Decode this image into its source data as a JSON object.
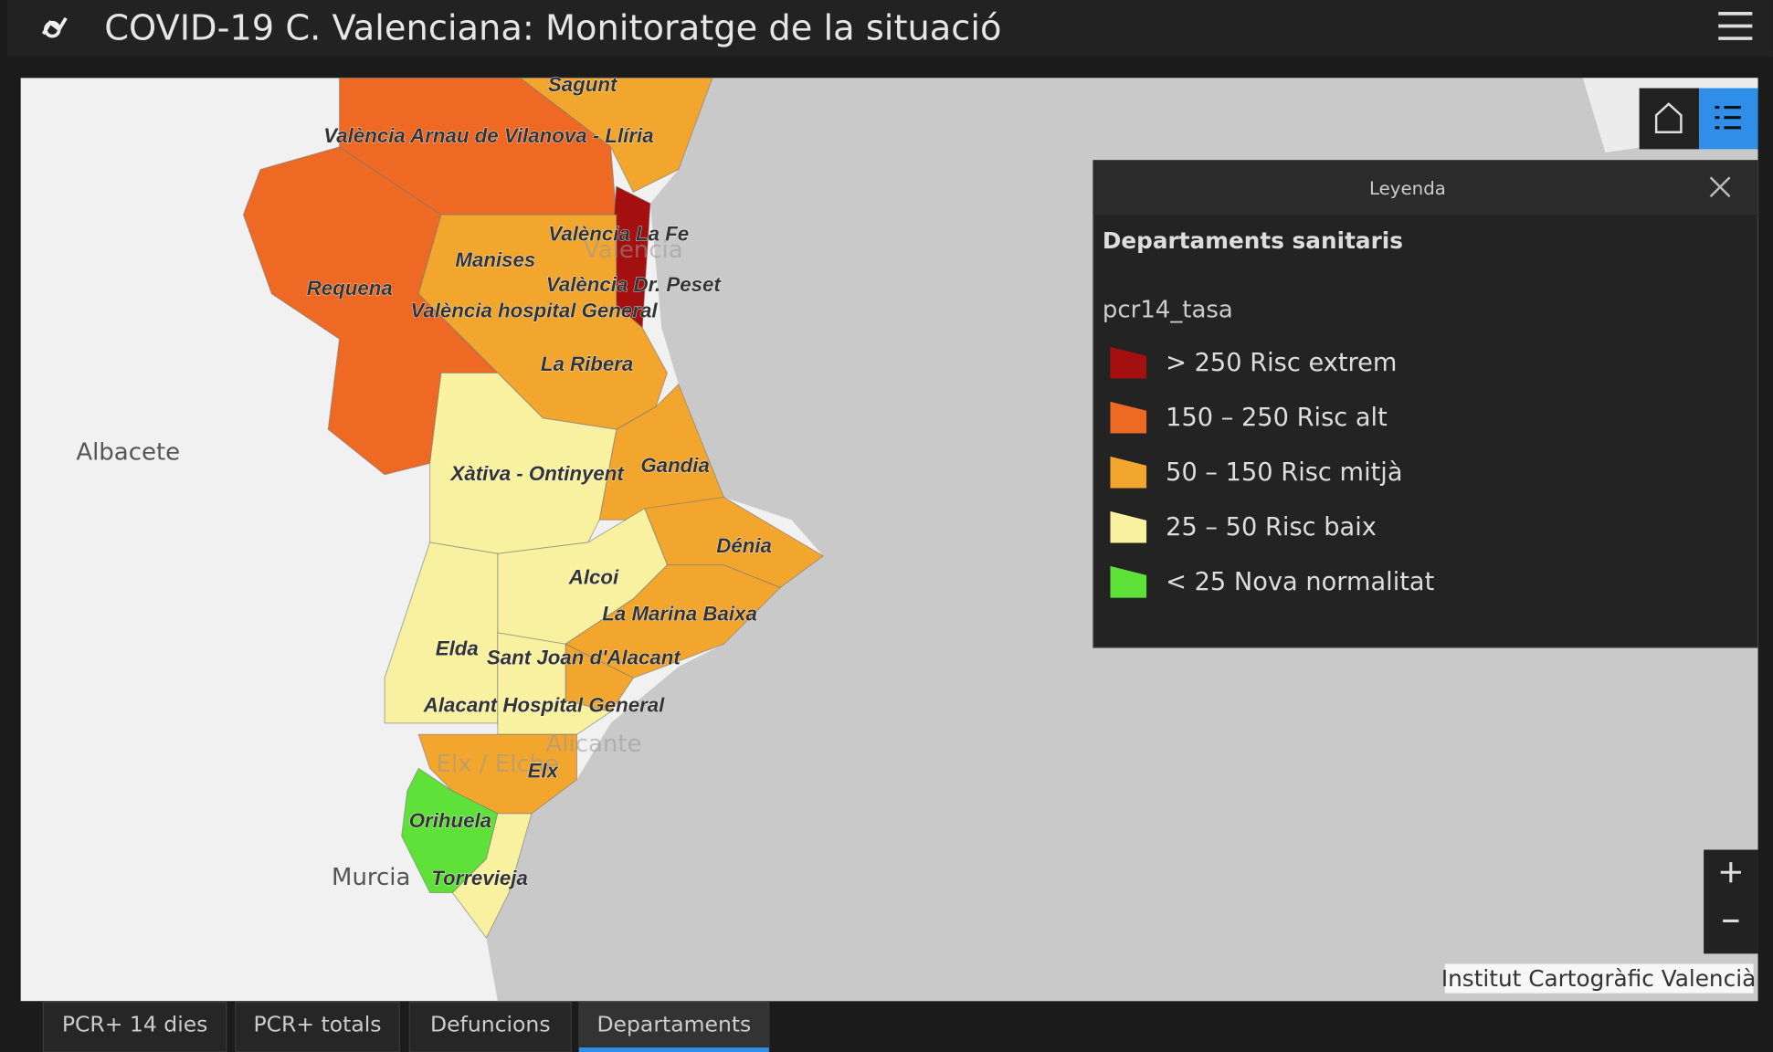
{
  "header": {
    "title": "COVID-19 C. Valenciana: Monitoratge de la situació"
  },
  "map": {
    "department_labels": [
      "Sagunt",
      "València Arnau de Vilanova - Llíria",
      "València La Fe",
      "Manises",
      "Requena",
      "València Dr. Peset",
      "València hospital General",
      "La Ribera",
      "Xàtiva - Ontinyent",
      "Gandia",
      "Dénia",
      "Alcoi",
      "La Marina Baixa",
      "Elda",
      "Sant Joan d'Alacant",
      "Alacant Hospital General",
      "Elx",
      "Orihuela",
      "Torrevieja"
    ],
    "place_labels": [
      "Albacete",
      "Murcia",
      "Valencia",
      "Alicante",
      "Elx / Elche"
    ],
    "attribution": "Institut Cartogràfic Valencià"
  },
  "legend": {
    "title": "Leyenda",
    "layer": "Departaments sanitaris",
    "field": "pcr14_tasa",
    "classes": [
      {
        "label": "> 250 Risc extrem",
        "color": "#a3100f"
      },
      {
        "label": "150 – 250 Risc alt",
        "color": "#ee6a24"
      },
      {
        "label": "50 – 150 Risc mitjà",
        "color": "#f3a62e"
      },
      {
        "label": "25 – 50 Risc baix",
        "color": "#f8f2a0"
      },
      {
        "label": "< 25 Nova normalitat",
        "color": "#5ee23a"
      }
    ]
  },
  "tabs": [
    "PCR+ 14 dies",
    "PCR+ totals",
    "Defuncions",
    "Departaments"
  ],
  "active_tab": 3
}
